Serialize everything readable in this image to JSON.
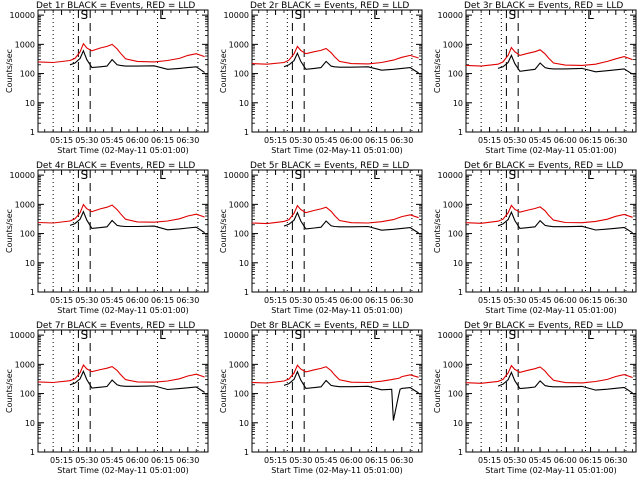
{
  "figure": {
    "event_color": "#000000",
    "lld_color": "#e00000",
    "x_tick_labels": [
      "05:15",
      "05:30",
      "05:45",
      "06:00",
      "06:15",
      "06:30"
    ],
    "y_tick_labels": [
      "1",
      "10",
      "100",
      "1000",
      "10000"
    ],
    "xlabel": "Start Time (02-May-11 05:01:00)",
    "ylabel": "Counts/sec",
    "markers": {
      "dotted_lines": [
        "05:10",
        "05:22",
        "06:12",
        "06:36"
      ],
      "dashed_lines": [
        "05:25",
        "05:32"
      ],
      "labels": [
        "S",
        "L"
      ]
    }
  },
  "chart_data": [
    {
      "type": "line",
      "title": "Det 1r BLACK = Events, RED = LLD",
      "xlabel": "Start Time (02-May-11 05:01:00)",
      "ylabel": "Counts/sec",
      "x_unit": "time (HH:MM, 02-May-11)",
      "x_range": [
        "05:01",
        "06:42"
      ],
      "ylim": [
        1,
        15000
      ],
      "yscale": "log",
      "x": [
        "05:01",
        "05:10",
        "05:20",
        "05:23",
        "05:26",
        "05:28",
        "05:30",
        "05:33",
        "05:38",
        "05:42",
        "05:45",
        "05:48",
        "05:50",
        "05:53",
        "06:00",
        "06:10",
        "06:18",
        "06:25",
        "06:30",
        "06:35",
        "06:40"
      ],
      "series": [
        {
          "name": "Events",
          "color": "#000000",
          "values": [
            null,
            null,
            200,
            230,
            330,
            600,
            300,
            160,
            170,
            180,
            300,
            200,
            190,
            180,
            180,
            185,
            140,
            150,
            160,
            170,
            110
          ]
        },
        {
          "name": "LLD",
          "color": "#e00000",
          "values": [
            250,
            240,
            280,
            330,
            550,
            1050,
            750,
            600,
            750,
            850,
            1000,
            700,
            500,
            320,
            260,
            250,
            280,
            330,
            420,
            480,
            380
          ]
        }
      ]
    },
    {
      "type": "line",
      "title": "Det 2r BLACK = Events, RED = LLD",
      "xlabel": "Start Time (02-May-11 05:01:00)",
      "ylabel": "Counts/sec",
      "x_unit": "time (HH:MM, 02-May-11)",
      "x_range": [
        "05:01",
        "06:42"
      ],
      "ylim": [
        1,
        15000
      ],
      "yscale": "log",
      "x": [
        "05:01",
        "05:10",
        "05:20",
        "05:23",
        "05:26",
        "05:28",
        "05:30",
        "05:33",
        "05:38",
        "05:42",
        "05:45",
        "05:48",
        "05:50",
        "05:53",
        "06:00",
        "06:10",
        "06:18",
        "06:25",
        "06:30",
        "06:35",
        "06:40"
      ],
      "series": [
        {
          "name": "Events",
          "color": "#000000",
          "values": [
            null,
            null,
            170,
            200,
            280,
            500,
            260,
            140,
            150,
            160,
            260,
            180,
            170,
            165,
            165,
            170,
            130,
            140,
            150,
            160,
            105
          ]
        },
        {
          "name": "LLD",
          "color": "#e00000",
          "values": [
            220,
            210,
            240,
            290,
            480,
            850,
            620,
            480,
            560,
            620,
            720,
            520,
            380,
            260,
            220,
            215,
            240,
            290,
            360,
            420,
            340
          ]
        }
      ]
    },
    {
      "type": "line",
      "title": "Det 3r BLACK = Events, RED = LLD",
      "xlabel": "Start Time (02-May-11 05:01:00)",
      "ylabel": "Counts/sec",
      "x_unit": "time (HH:MM, 02-May-11)",
      "x_range": [
        "05:01",
        "06:42"
      ],
      "ylim": [
        1,
        15000
      ],
      "yscale": "log",
      "x": [
        "05:01",
        "05:10",
        "05:20",
        "05:23",
        "05:26",
        "05:28",
        "05:30",
        "05:33",
        "05:38",
        "05:42",
        "05:45",
        "05:48",
        "05:50",
        "05:53",
        "06:00",
        "06:10",
        "06:18",
        "06:25",
        "06:30",
        "06:35",
        "06:40"
      ],
      "series": [
        {
          "name": "Events",
          "color": "#000000",
          "values": [
            null,
            null,
            150,
            170,
            240,
            420,
            220,
            120,
            130,
            140,
            230,
            160,
            150,
            145,
            145,
            150,
            115,
            125,
            135,
            145,
            95
          ]
        },
        {
          "name": "LLD",
          "color": "#e00000",
          "values": [
            190,
            180,
            210,
            250,
            420,
            780,
            560,
            420,
            500,
            560,
            650,
            470,
            340,
            230,
            195,
            190,
            210,
            260,
            320,
            380,
            300
          ]
        }
      ]
    },
    {
      "type": "line",
      "title": "Det 4r BLACK = Events, RED = LLD",
      "xlabel": "Start Time (02-May-11 05:01:00)",
      "ylabel": "Counts/sec",
      "x_unit": "time (HH:MM, 02-May-11)",
      "x_range": [
        "05:01",
        "06:42"
      ],
      "ylim": [
        1,
        15000
      ],
      "yscale": "log",
      "x": [
        "05:01",
        "05:10",
        "05:20",
        "05:23",
        "05:26",
        "05:28",
        "05:30",
        "05:33",
        "05:38",
        "05:42",
        "05:45",
        "05:48",
        "05:50",
        "05:53",
        "06:00",
        "06:10",
        "06:18",
        "06:25",
        "06:30",
        "06:35",
        "06:40"
      ],
      "series": [
        {
          "name": "Events",
          "color": "#000000",
          "values": [
            null,
            null,
            190,
            220,
            310,
            560,
            290,
            150,
            160,
            170,
            280,
            190,
            180,
            175,
            175,
            180,
            135,
            145,
            155,
            165,
            108
          ]
        },
        {
          "name": "LLD",
          "color": "#e00000",
          "values": [
            240,
            230,
            270,
            320,
            520,
            980,
            710,
            560,
            700,
            800,
            940,
            660,
            480,
            310,
            250,
            245,
            270,
            320,
            400,
            460,
            370
          ]
        }
      ]
    },
    {
      "type": "line",
      "title": "Det 5r BLACK = Events, RED = LLD",
      "xlabel": "Start Time (02-May-11 05:01:00)",
      "ylabel": "Counts/sec",
      "x_unit": "time (HH:MM, 02-May-11)",
      "x_range": [
        "05:01",
        "06:42"
      ],
      "ylim": [
        1,
        15000
      ],
      "yscale": "log",
      "x": [
        "05:01",
        "05:10",
        "05:20",
        "05:23",
        "05:26",
        "05:28",
        "05:30",
        "05:33",
        "05:38",
        "05:42",
        "05:45",
        "05:48",
        "05:50",
        "05:53",
        "06:00",
        "06:10",
        "06:18",
        "06:25",
        "06:30",
        "06:35",
        "06:40"
      ],
      "series": [
        {
          "name": "Events",
          "color": "#000000",
          "values": [
            null,
            null,
            180,
            210,
            290,
            520,
            270,
            145,
            155,
            165,
            270,
            185,
            175,
            170,
            170,
            175,
            130,
            140,
            150,
            160,
            105
          ]
        },
        {
          "name": "LLD",
          "color": "#e00000",
          "values": [
            230,
            220,
            260,
            300,
            500,
            900,
            660,
            520,
            620,
            700,
            800,
            580,
            420,
            280,
            235,
            230,
            255,
            300,
            380,
            440,
            350
          ]
        }
      ]
    },
    {
      "type": "line",
      "title": "Det 6r BLACK = Events, RED = LLD",
      "xlabel": "Start Time (02-May-11 05:01:00)",
      "ylabel": "Counts/sec",
      "x_unit": "time (HH:MM, 02-May-11)",
      "x_range": [
        "05:01",
        "06:42"
      ],
      "ylim": [
        1,
        15000
      ],
      "yscale": "log",
      "x": [
        "05:01",
        "05:10",
        "05:20",
        "05:23",
        "05:26",
        "05:28",
        "05:30",
        "05:33",
        "05:38",
        "05:42",
        "05:45",
        "05:48",
        "05:50",
        "05:53",
        "06:00",
        "06:10",
        "06:18",
        "06:25",
        "06:30",
        "06:35",
        "06:40"
      ],
      "series": [
        {
          "name": "Events",
          "color": "#000000",
          "values": [
            null,
            null,
            185,
            215,
            300,
            540,
            280,
            150,
            160,
            170,
            275,
            190,
            180,
            172,
            172,
            178,
            132,
            142,
            152,
            162,
            106
          ]
        },
        {
          "name": "LLD",
          "color": "#e00000",
          "values": [
            235,
            225,
            265,
            310,
            510,
            920,
            680,
            540,
            640,
            720,
            820,
            600,
            430,
            290,
            240,
            235,
            260,
            310,
            390,
            450,
            360
          ]
        }
      ]
    },
    {
      "type": "line",
      "title": "Det 7r BLACK = Events, RED = LLD",
      "xlabel": "Start Time (02-May-11 05:01:00)",
      "ylabel": "Counts/sec",
      "x_unit": "time (HH:MM, 02-May-11)",
      "x_range": [
        "05:01",
        "06:42"
      ],
      "ylim": [
        1,
        15000
      ],
      "yscale": "log",
      "x": [
        "05:01",
        "05:10",
        "05:20",
        "05:23",
        "05:26",
        "05:28",
        "05:30",
        "05:33",
        "05:38",
        "05:42",
        "05:45",
        "05:48",
        "05:50",
        "05:53",
        "06:00",
        "06:10",
        "06:18",
        "06:25",
        "06:30",
        "06:35",
        "06:40"
      ],
      "series": [
        {
          "name": "Events",
          "color": "#000000",
          "values": [
            null,
            null,
            200,
            230,
            320,
            580,
            300,
            155,
            165,
            175,
            290,
            200,
            185,
            178,
            178,
            183,
            138,
            148,
            158,
            168,
            110
          ]
        },
        {
          "name": "LLD",
          "color": "#e00000",
          "values": [
            250,
            240,
            275,
            320,
            520,
            950,
            700,
            560,
            660,
            740,
            840,
            620,
            450,
            300,
            250,
            245,
            270,
            320,
            400,
            460,
            370
          ]
        }
      ]
    },
    {
      "type": "line",
      "title": "Det 8r BLACK = Events, RED = LLD",
      "xlabel": "Start Time (02-May-11 05:01:00)",
      "ylabel": "Counts/sec",
      "x_unit": "time (HH:MM, 02-May-11)",
      "x_range": [
        "05:01",
        "06:42"
      ],
      "ylim": [
        1,
        15000
      ],
      "yscale": "log",
      "x": [
        "05:01",
        "05:10",
        "05:20",
        "05:23",
        "05:26",
        "05:28",
        "05:30",
        "05:33",
        "05:38",
        "05:42",
        "05:45",
        "05:48",
        "05:50",
        "05:53",
        "06:00",
        "06:10",
        "06:18",
        "06:24",
        "06:25",
        "06:28",
        "06:29",
        "06:30",
        "06:35",
        "06:40"
      ],
      "series": [
        {
          "name": "Events",
          "color": "#000000",
          "values": [
            null,
            null,
            190,
            220,
            310,
            560,
            290,
            150,
            160,
            170,
            280,
            190,
            180,
            172,
            172,
            178,
            135,
            140,
            12,
            80,
            140,
            150,
            160,
            105
          ]
        },
        {
          "name": "LLD",
          "color": "#e00000",
          "values": [
            240,
            230,
            270,
            315,
            510,
            930,
            690,
            550,
            650,
            730,
            830,
            610,
            440,
            295,
            245,
            240,
            265,
            300,
            310,
            330,
            350,
            380,
            440,
            360
          ]
        }
      ]
    },
    {
      "type": "line",
      "title": "Det 9r BLACK = Events, RED = LLD",
      "xlabel": "Start Time (02-May-11 05:01:00)",
      "ylabel": "Counts/sec",
      "x_unit": "time (HH:MM, 02-May-11)",
      "x_range": [
        "05:01",
        "06:42"
      ],
      "ylim": [
        1,
        15000
      ],
      "yscale": "log",
      "x": [
        "05:01",
        "05:10",
        "05:20",
        "05:23",
        "05:26",
        "05:28",
        "05:30",
        "05:33",
        "05:38",
        "05:42",
        "05:45",
        "05:48",
        "05:50",
        "05:53",
        "06:00",
        "06:10",
        "06:18",
        "06:25",
        "06:30",
        "06:35",
        "06:40"
      ],
      "series": [
        {
          "name": "Events",
          "color": "#000000",
          "values": [
            null,
            null,
            180,
            210,
            295,
            530,
            275,
            148,
            158,
            168,
            272,
            188,
            178,
            170,
            170,
            176,
            131,
            141,
            151,
            161,
            104
          ]
        },
        {
          "name": "LLD",
          "color": "#e00000",
          "values": [
            235,
            225,
            262,
            305,
            505,
            910,
            670,
            530,
            630,
            710,
            810,
            590,
            425,
            285,
            238,
            232,
            258,
            305,
            385,
            445,
            355
          ]
        }
      ]
    }
  ]
}
